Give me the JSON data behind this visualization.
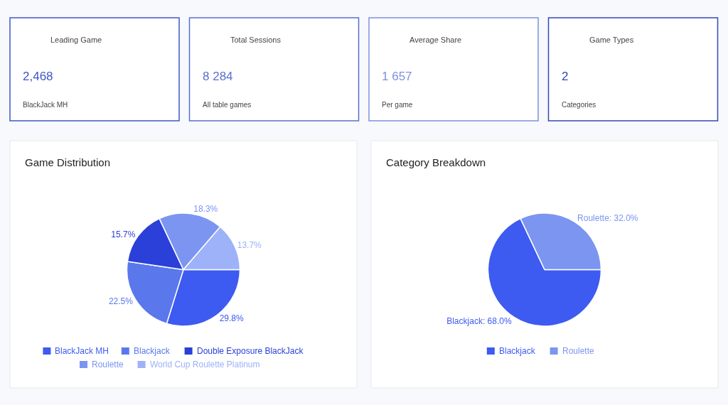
{
  "chart_data": [
    {
      "type": "other",
      "title": "Leading Game",
      "annotations": [
        "2,468",
        "BlackJack MH"
      ],
      "color": "#3f57c9"
    },
    {
      "type": "other",
      "title": "Total Sessions",
      "annotations": [
        "8 284",
        "All table games"
      ],
      "color": "#5a6fd0"
    },
    {
      "type": "other",
      "title": "Average Share",
      "annotations": [
        "1 657",
        "Per game"
      ],
      "color": "#7d90e0"
    },
    {
      "type": "other",
      "title": "Game Types",
      "annotations": [
        "2",
        "Categories"
      ],
      "color": "#3347b8"
    },
    {
      "type": "pie",
      "title": "Game Distribution",
      "categories": [
        "BlackJack MH",
        "Blackjack",
        "Double Exposure BlackJack",
        "Roulette",
        "World Cup Roulette Platinum"
      ],
      "values": [
        29.8,
        22.5,
        15.7,
        18.3,
        13.7
      ],
      "colors": [
        "#3d5af1",
        "#5a78ec",
        "#2a40d8",
        "#7b95f0",
        "#9db2f8"
      ],
      "value_labels": [
        "29.8%",
        "22.5%",
        "15.7%",
        "18.3%",
        "13.7%"
      ],
      "legend": "bottom"
    },
    {
      "type": "pie",
      "title": "Category Breakdown",
      "categories": [
        "Blackjack",
        "Roulette"
      ],
      "values": [
        68.0,
        32.0
      ],
      "colors": [
        "#3d5af1",
        "#7b95f0"
      ],
      "value_labels": [
        "Blackjack: 68.0%",
        "Roulette: 32.0%"
      ],
      "legend": "bottom"
    }
  ]
}
